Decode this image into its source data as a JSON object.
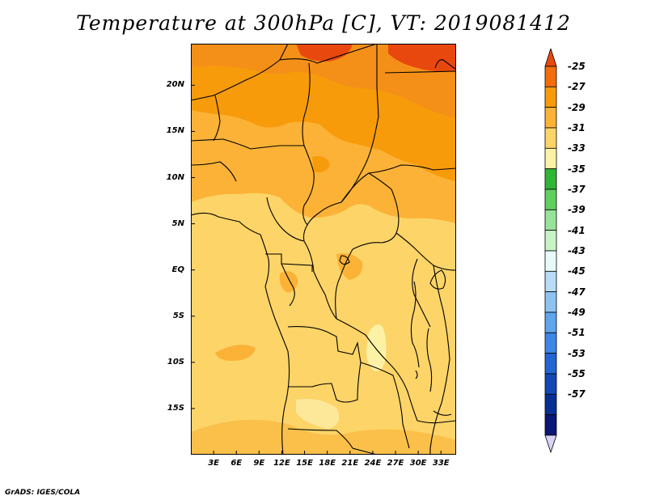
{
  "title": "Temperature at 300hPa [C], VT: 2019081412",
  "credit": "GrADS: IGES/COLA",
  "map": {
    "lat_labels": [
      {
        "text": "20N",
        "lat": 20
      },
      {
        "text": "15N",
        "lat": 15
      },
      {
        "text": "10N",
        "lat": 10
      },
      {
        "text": "5N",
        "lat": 5
      },
      {
        "text": "EQ",
        "lat": 0
      },
      {
        "text": "5S",
        "lat": -5
      },
      {
        "text": "10S",
        "lat": -10
      },
      {
        "text": "15S",
        "lat": -15
      }
    ],
    "lon_labels": [
      {
        "text": "3E",
        "lon": 3
      },
      {
        "text": "6E",
        "lon": 6
      },
      {
        "text": "9E",
        "lon": 9
      },
      {
        "text": "12E",
        "lon": 12
      },
      {
        "text": "15E",
        "lon": 15
      },
      {
        "text": "18E",
        "lon": 18
      },
      {
        "text": "21E",
        "lon": 21
      },
      {
        "text": "24E",
        "lon": 24
      },
      {
        "text": "27E",
        "lon": 27
      },
      {
        "text": "30E",
        "lon": 30
      },
      {
        "text": "33E",
        "lon": 33
      }
    ],
    "lon_range": [
      0,
      35
    ],
    "lat_range": [
      -20,
      24.5
    ]
  },
  "colorbar": {
    "labels": [
      "-25",
      "-27",
      "-29",
      "-31",
      "-33",
      "-35",
      "-37",
      "-39",
      "-41",
      "-43",
      "-45",
      "-47",
      "-49",
      "-51",
      "-53",
      "-55",
      "-57"
    ],
    "colors": [
      "#e8480d",
      "#f26e0a",
      "#f79b0b",
      "#fbb236",
      "#fcd468",
      "#fdf1a6",
      "#2fb634",
      "#5fcf5e",
      "#98e39a",
      "#c8f4c5",
      "#e8fbf9",
      "#b8dcf6",
      "#8ec3f1",
      "#5ea5ec",
      "#3d87e6",
      "#2266d4",
      "#1048b5",
      "#0a2f93",
      "#0b1776",
      "#d9d4f5"
    ]
  }
}
